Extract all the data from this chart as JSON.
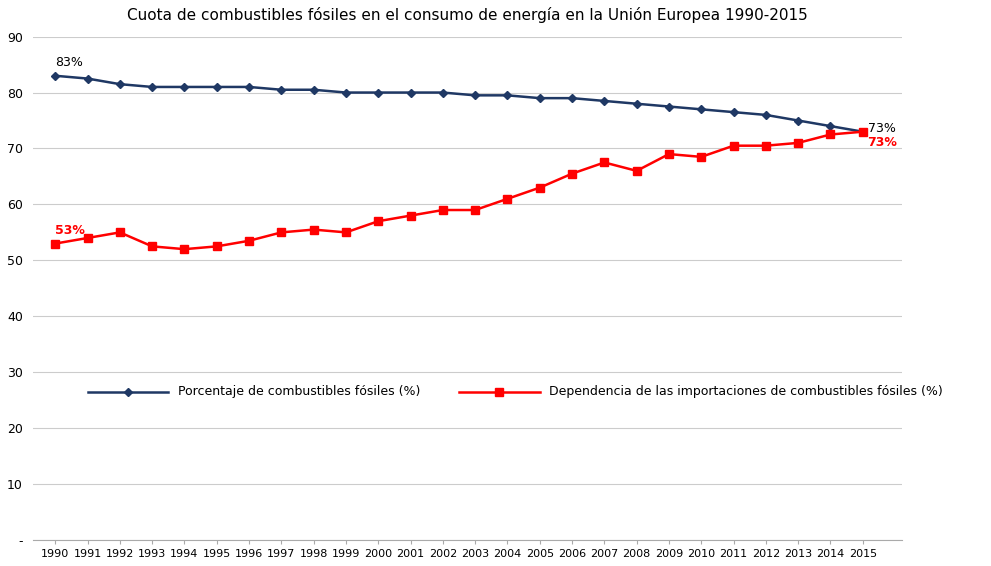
{
  "title": "Cuota de combustibles fósiles en el consumo de energía en la Unión Europea 1990-2015",
  "years": [
    1990,
    1991,
    1992,
    1993,
    1994,
    1995,
    1996,
    1997,
    1998,
    1999,
    2000,
    2001,
    2002,
    2003,
    2004,
    2005,
    2006,
    2007,
    2008,
    2009,
    2010,
    2011,
    2012,
    2013,
    2014,
    2015
  ],
  "fossil_pct": [
    83,
    82.5,
    81.5,
    81,
    81,
    81,
    81,
    80.5,
    80.5,
    80,
    80,
    80,
    80,
    79.5,
    79.5,
    79,
    79,
    78.5,
    78,
    77.5,
    77,
    76.5,
    76,
    75,
    74,
    73
  ],
  "import_dep": [
    53,
    54,
    55,
    52.5,
    52,
    52.5,
    53.5,
    55,
    55.5,
    55,
    57,
    58,
    59,
    59,
    61,
    63,
    65.5,
    67.5,
    66,
    69,
    68.5,
    70.5,
    70.5,
    71,
    72.5,
    73
  ],
  "fossil_color": "#1F3864",
  "import_color": "#FF0000",
  "legend1": "Porcentaje de combustibles fósiles (%)",
  "legend2": "Dependencia de las importaciones de combustibles fósiles (%)",
  "ylim_min": 0,
  "ylim_max": 90,
  "yticks": [
    0,
    10,
    20,
    30,
    40,
    50,
    60,
    70,
    80,
    90
  ],
  "yticklabels": [
    "-",
    "10",
    "20",
    "30",
    "40",
    "50",
    "60",
    "70",
    "80",
    "90"
  ],
  "annotation_1990_fossil": "83%",
  "annotation_2015_fossil": "73%",
  "annotation_1990_import": "53%",
  "annotation_2015_import": "73%"
}
